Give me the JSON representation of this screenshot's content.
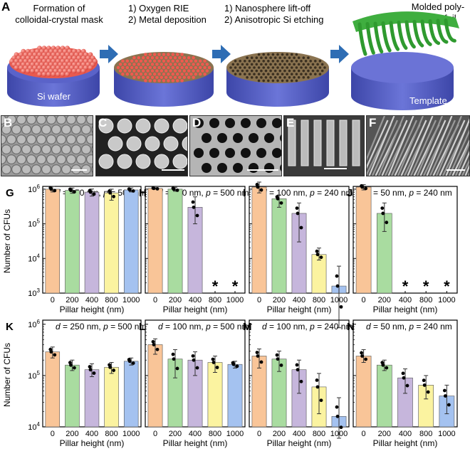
{
  "panel_a": {
    "letter": "A",
    "step1": "Formation of\ncolloidal-crystal mask",
    "step2": "1) Oxygen RIE\n2) Metal deposition",
    "step3": "1) Nanosphere lift-off\n2) Anisotropic Si etching",
    "step4": "Molded poly-\nimide  foil",
    "wafer_label": "Si wafer",
    "template_label": "Template"
  },
  "sem_letters": [
    "B",
    "C",
    "D",
    "E",
    "F"
  ],
  "ylabel": "Number of CFUs",
  "xlabel": "Pillar height (nm)",
  "colors": {
    "h0": "#f9c598",
    "h200": "#a9dca0",
    "h400": "#c6b6dc",
    "h800": "#fbf3a0",
    "h1000": "#a4c2f0",
    "arrow": "#2e6db4",
    "si": "#5a63c9",
    "sphere": "#ef5a4f",
    "metal": "#8a7350",
    "foil": "#3fae3f"
  },
  "chart_data": [
    {
      "panel": "G",
      "type": "bar",
      "title_d": "d",
      "title_d_val": " = 250 nm, ",
      "title_p": "p",
      "title_p_val": " = 500 nm",
      "categories": [
        "0",
        "200",
        "400",
        "800",
        "1000"
      ],
      "values": [
        1000000,
        920000,
        820000,
        780000,
        950000
      ],
      "err_low": [
        830000,
        760000,
        630000,
        480000,
        830000
      ],
      "err_high": [
        1200000,
        1080000,
        1010000,
        1000000,
        1080000
      ],
      "ylim": [
        1000,
        1000000
      ],
      "log": true,
      "stars": []
    },
    {
      "panel": "H",
      "type": "bar",
      "title_d": "d",
      "title_d_val": " = 100 nm, ",
      "title_p": "p",
      "title_p_val": " = 500 nm",
      "categories": [
        "0",
        "200",
        "400",
        "800",
        "1000"
      ],
      "values": [
        1050000,
        1000000,
        300000,
        null,
        null
      ],
      "err_low": [
        1000000,
        870000,
        100000,
        null,
        null
      ],
      "err_high": [
        1100000,
        1130000,
        600000,
        null,
        null
      ],
      "ylim": [
        1000,
        1000000
      ],
      "log": true,
      "stars": [
        "800",
        "1000"
      ]
    },
    {
      "panel": "I",
      "type": "bar",
      "title_d": "d",
      "title_d_val": " = 100 nm, ",
      "title_p": "p",
      "title_p_val": " = 240 nm",
      "categories": [
        "0",
        "200",
        "400",
        "800",
        "1000"
      ],
      "values": [
        1150000,
        530000,
        200000,
        13000,
        1600
      ],
      "err_low": [
        780000,
        300000,
        30000,
        9000,
        100
      ],
      "err_high": [
        1600000,
        680000,
        400000,
        20000,
        6000
      ],
      "ylim": [
        1000,
        1000000
      ],
      "log": true,
      "stars": []
    },
    {
      "panel": "J",
      "type": "bar",
      "title_d": "d",
      "title_d_val": " = 50 nm, ",
      "title_p": "p",
      "title_p_val": " = 240 nm",
      "categories": [
        "0",
        "200",
        "400",
        "800",
        "1000"
      ],
      "values": [
        1150000,
        200000,
        null,
        null,
        null
      ],
      "err_low": [
        950000,
        60000,
        null,
        null,
        null
      ],
      "err_high": [
        1350000,
        400000,
        null,
        null,
        null
      ],
      "ylim": [
        1000,
        1000000
      ],
      "log": true,
      "stars": [
        "400",
        "800",
        "1000"
      ]
    },
    {
      "panel": "K",
      "type": "bar",
      "title_d": "d",
      "title_d_val": " = 250 nm, ",
      "title_p": "p",
      "title_p_val": " = 500 nm",
      "categories": [
        "0",
        "200",
        "400",
        "800",
        "1000"
      ],
      "values": [
        290000,
        160000,
        130000,
        145000,
        190000
      ],
      "err_low": [
        220000,
        125000,
        95000,
        110000,
        160000
      ],
      "err_high": [
        360000,
        200000,
        170000,
        180000,
        220000
      ],
      "ylim": [
        10000,
        1000000
      ],
      "log": true,
      "stars": []
    },
    {
      "panel": "L",
      "type": "bar",
      "title_d": "d",
      "title_d_val": " = 100 nm, ",
      "title_p": "p",
      "title_p_val": " = 500 nm",
      "categories": [
        "0",
        "200",
        "400",
        "800",
        "1000"
      ],
      "values": [
        400000,
        210000,
        200000,
        180000,
        165000
      ],
      "err_low": [
        260000,
        90000,
        100000,
        115000,
        140000
      ],
      "err_high": [
        520000,
        320000,
        290000,
        240000,
        190000
      ],
      "ylim": [
        10000,
        1000000
      ],
      "log": true,
      "stars": []
    },
    {
      "panel": "M",
      "type": "bar",
      "title_d": "d",
      "title_d_val": " = 100 nm, ",
      "title_p": "p",
      "title_p_val": " = 240 nm",
      "categories": [
        "0",
        "200",
        "400",
        "800",
        "1000"
      ],
      "values": [
        240000,
        210000,
        130000,
        60000,
        16000
      ],
      "err_low": [
        140000,
        120000,
        45000,
        18000,
        6000
      ],
      "err_high": [
        330000,
        300000,
        200000,
        110000,
        37000
      ],
      "ylim": [
        10000,
        1000000
      ],
      "log": true,
      "stars": []
    },
    {
      "panel": "N",
      "type": "bar",
      "title_d": "d",
      "title_d_val": " = 50 nm, ",
      "title_p": "p",
      "title_p_val": " = 240 nm",
      "categories": [
        "0",
        "200",
        "400",
        "800",
        "1000"
      ],
      "values": [
        240000,
        160000,
        90000,
        65000,
        40000
      ],
      "err_low": [
        180000,
        125000,
        45000,
        35000,
        18000
      ],
      "err_high": [
        320000,
        200000,
        135000,
        100000,
        65000
      ],
      "ylim": [
        10000,
        1000000
      ],
      "log": true,
      "stars": []
    }
  ]
}
